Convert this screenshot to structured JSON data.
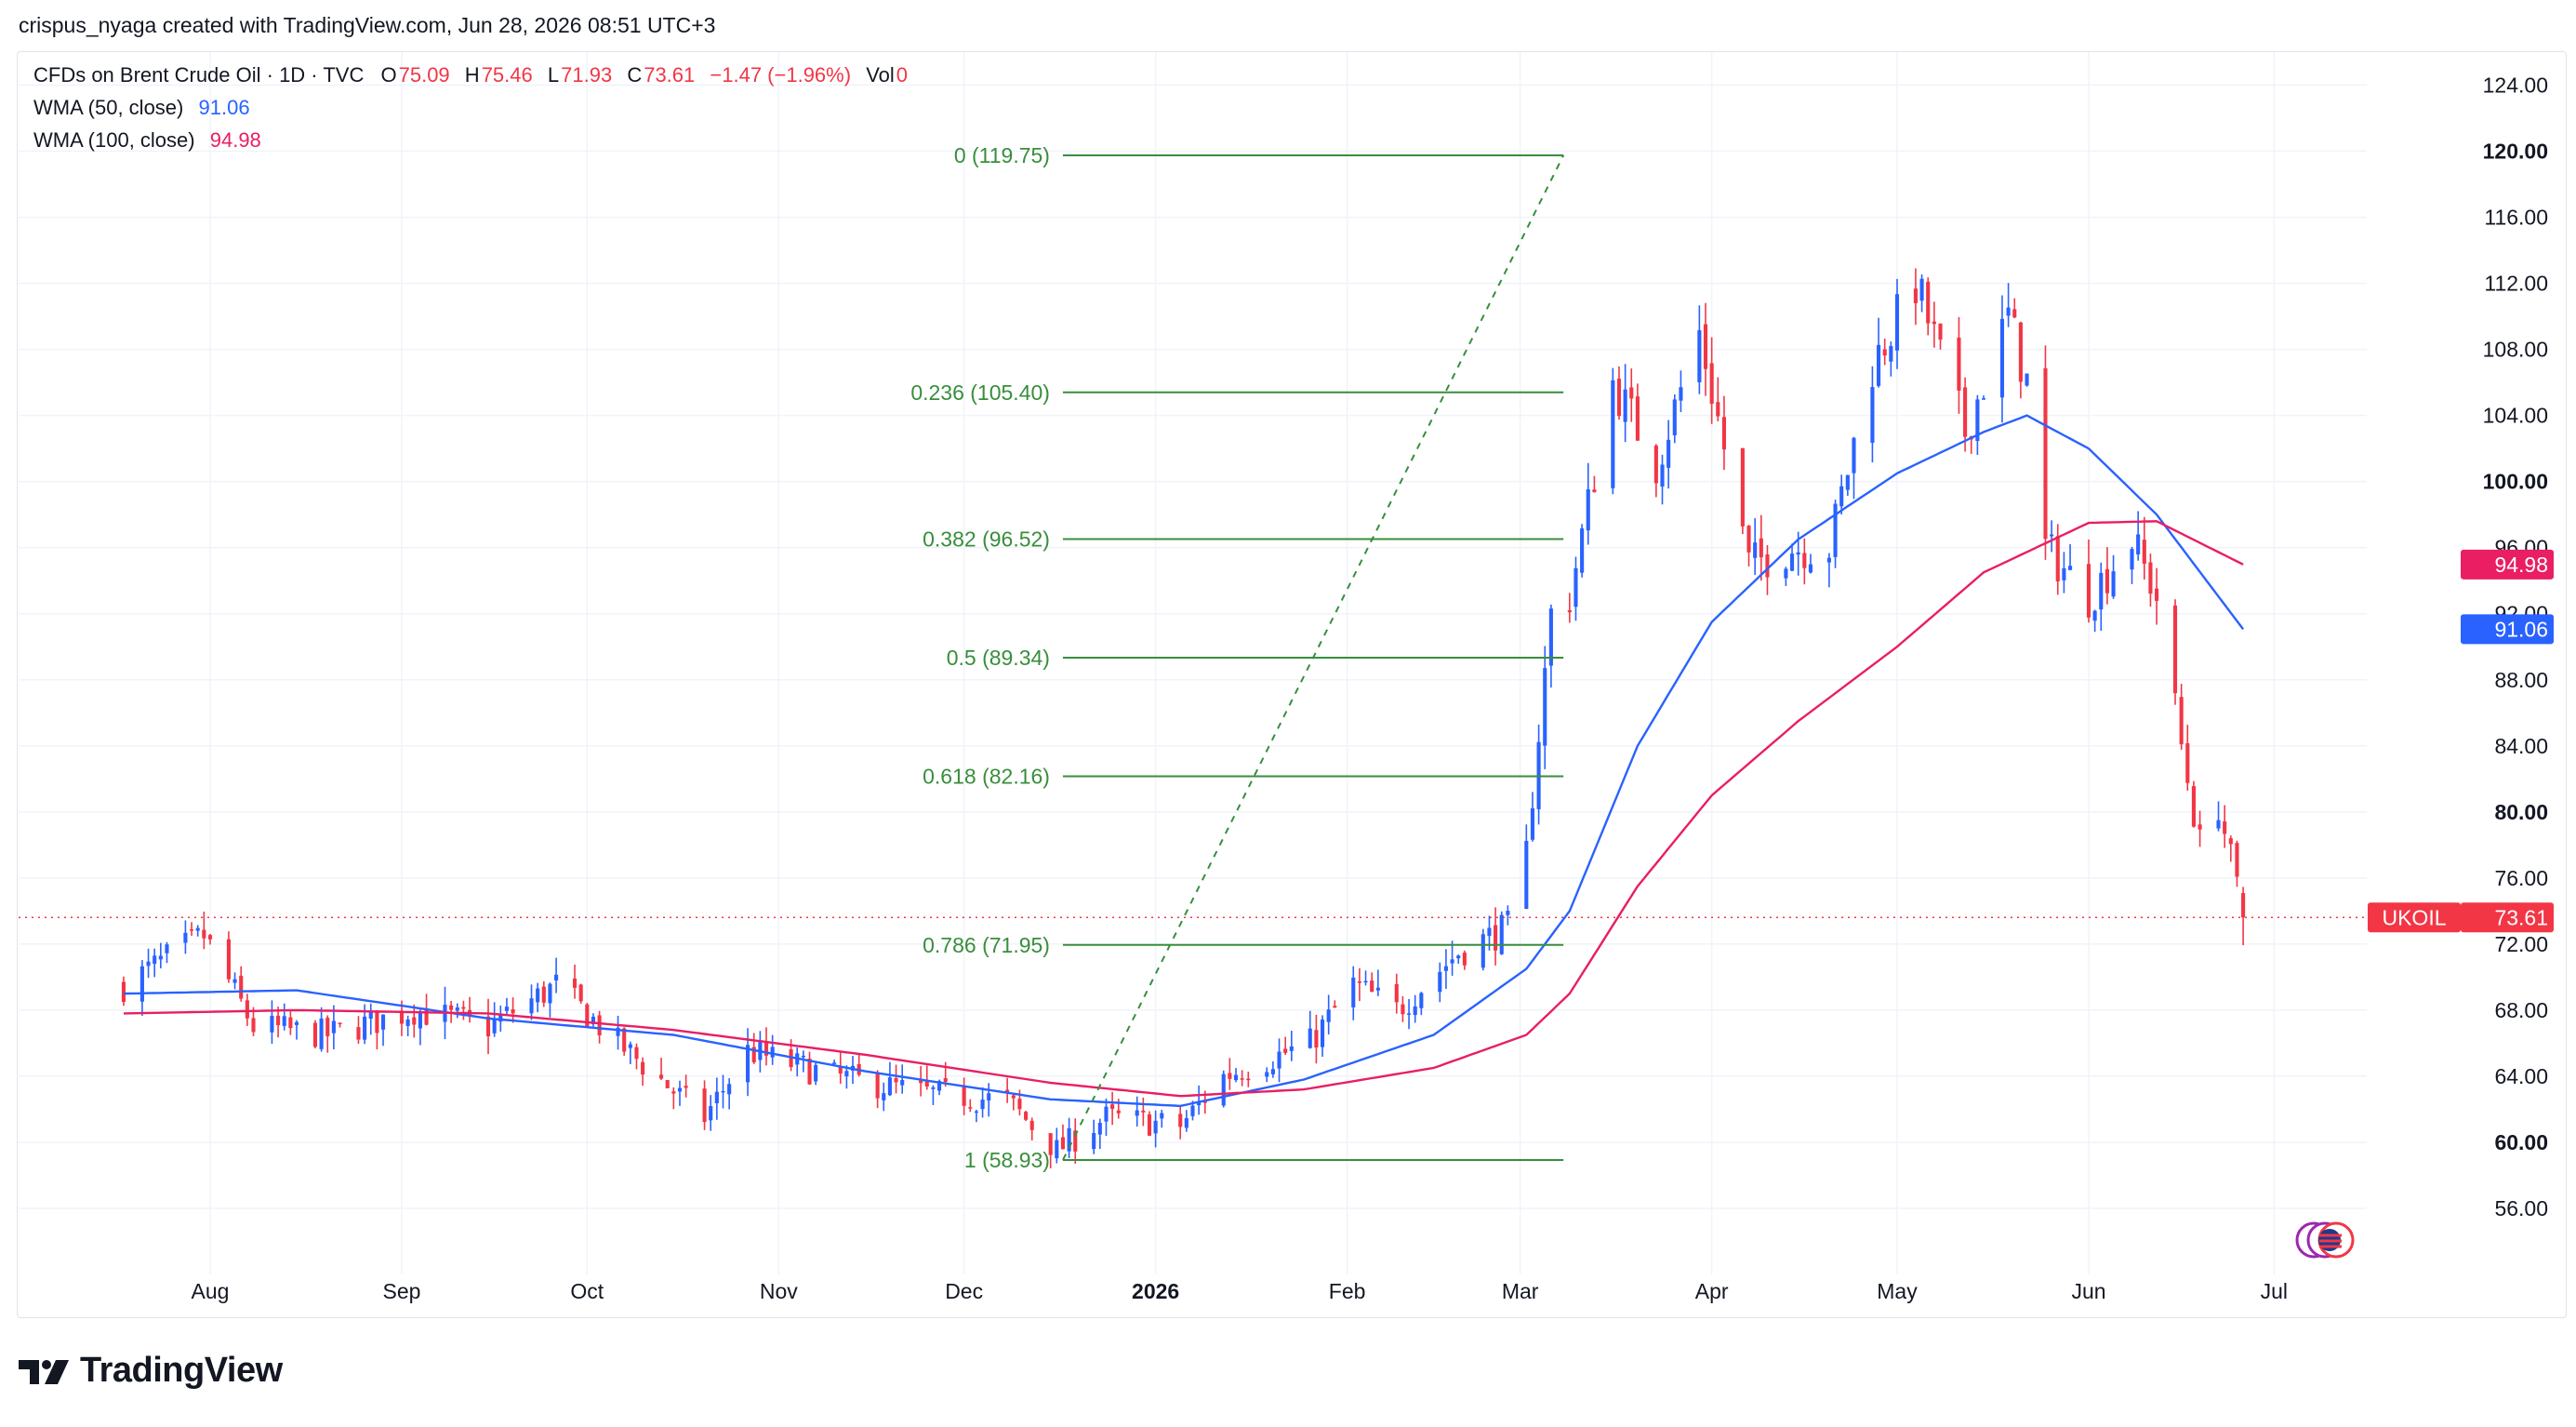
{
  "header": {
    "credit": "crispus_nyaga created with TradingView.com, Jun 28, 2026 08:51 UTC+3"
  },
  "legend": {
    "symbol": "CFDs on Brent Crude Oil · 1D · TVC",
    "o_label": "O",
    "o_value": "75.09",
    "h_label": "H",
    "h_value": "75.46",
    "l_label": "L",
    "l_value": "71.93",
    "c_label": "C",
    "c_value": "73.61",
    "change": "−1.47 (−1.96%)",
    "vol_label": "Vol",
    "vol_value": "0",
    "wma50_label": "WMA (50, close)",
    "wma50_value": "91.06",
    "wma100_label": "WMA (100, close)",
    "wma100_value": "94.98"
  },
  "colors": {
    "up": "#2962ff",
    "down": "#f23645",
    "wma50": "#2962ff",
    "wma100": "#e91e63",
    "fib": "#388e3c",
    "grid": "#f0f3fa",
    "text": "#131722",
    "price_tag": "#f23645"
  },
  "logo": {
    "text": "TradingView"
  },
  "chart_data": {
    "type": "candlestick",
    "symbol": "UKOIL",
    "last_price": 73.61,
    "ylim": [
      52,
      126
    ],
    "y_ticks": [
      "124.00",
      "120.00",
      "116.00",
      "112.00",
      "108.00",
      "104.00",
      "100.00",
      "96.00",
      "92.00",
      "88.00",
      "84.00",
      "80.00",
      "76.00",
      "72.00",
      "68.00",
      "64.00",
      "60.00",
      "56.00"
    ],
    "y_ticks_bold": [
      "120.00",
      "100.00",
      "80.00",
      "60.00"
    ],
    "x_labels": [
      "Aug",
      "Sep",
      "Oct",
      "Nov",
      "Dec",
      "2026",
      "Feb",
      "Mar",
      "Apr",
      "May",
      "Jun",
      "Jul"
    ],
    "x_labels_bold": [
      "2026"
    ],
    "price_tags": [
      {
        "label": "",
        "value": "94.98",
        "price": 94.98,
        "color": "#e91e63"
      },
      {
        "label": "",
        "value": "91.06",
        "price": 91.06,
        "color": "#2962ff"
      },
      {
        "label": "UKOIL",
        "value": "73.61",
        "price": 73.61,
        "color": "#f23645"
      }
    ],
    "fibonacci": [
      {
        "label": "0 (119.75)",
        "price": 119.75
      },
      {
        "label": "0.236 (105.40)",
        "price": 105.4
      },
      {
        "label": "0.382 (96.52)",
        "price": 96.52
      },
      {
        "label": "0.5 (89.34)",
        "price": 89.34
      },
      {
        "label": "0.618 (82.16)",
        "price": 82.16
      },
      {
        "label": "0.786 (71.95)",
        "price": 71.95
      },
      {
        "label": "1 (58.93)",
        "price": 58.93
      }
    ],
    "fib_anchor": {
      "low_label": "1 (58.93)",
      "high_label": "0 (119.75)",
      "low": 58.93,
      "high": 119.75
    },
    "series": [
      {
        "name": "CFDs on Brent Crude Oil",
        "key_points": [
          [
            "2025-07-18",
            69.5
          ],
          [
            "2025-07-31",
            72.5
          ],
          [
            "2025-08-08",
            67.0
          ],
          [
            "2025-08-20",
            66.5
          ],
          [
            "2025-09-03",
            68.0
          ],
          [
            "2025-09-15",
            67.0
          ],
          [
            "2025-09-26",
            69.5
          ],
          [
            "2025-10-06",
            66.0
          ],
          [
            "2025-10-20",
            61.5
          ],
          [
            "2025-10-27",
            65.5
          ],
          [
            "2025-11-10",
            64.0
          ],
          [
            "2025-11-24",
            63.0
          ],
          [
            "2025-12-08",
            62.5
          ],
          [
            "2025-12-16",
            59.5
          ],
          [
            "2025-12-24",
            61.5
          ],
          [
            "2026-01-05",
            61.0
          ],
          [
            "2026-01-12",
            64.0
          ],
          [
            "2026-01-26",
            66.0
          ],
          [
            "2026-02-02",
            69.5
          ],
          [
            "2026-02-09",
            68.0
          ],
          [
            "2026-02-19",
            71.5
          ],
          [
            "2026-02-27",
            73.0
          ],
          [
            "2026-03-02",
            77.5
          ],
          [
            "2026-03-06",
            92.0
          ],
          [
            "2026-03-09",
            93.0
          ],
          [
            "2026-03-16",
            106.0
          ],
          [
            "2026-03-23",
            101.0
          ],
          [
            "2026-03-30",
            109.0
          ],
          [
            "2026-04-07",
            95.0
          ],
          [
            "2026-04-14",
            96.0
          ],
          [
            "2026-04-20",
            96.0
          ],
          [
            "2026-04-27",
            107.0
          ],
          [
            "2026-05-04",
            112.0
          ],
          [
            "2026-05-12",
            103.0
          ],
          [
            "2026-05-19",
            110.0
          ],
          [
            "2026-05-22",
            106.0
          ],
          [
            "2026-05-25",
            96.0
          ],
          [
            "2026-06-01",
            93.0
          ],
          [
            "2026-06-08",
            96.5
          ],
          [
            "2026-06-12",
            93.0
          ],
          [
            "2026-06-16",
            84.0
          ],
          [
            "2026-06-19",
            78.0
          ],
          [
            "2026-06-22",
            80.5
          ],
          [
            "2026-06-26",
            73.61
          ]
        ]
      },
      {
        "name": "WMA (50, close)",
        "key_points": [
          [
            "2025-07-18",
            69.0
          ],
          [
            "2025-08-15",
            69.2
          ],
          [
            "2025-09-15",
            67.5
          ],
          [
            "2025-10-15",
            66.5
          ],
          [
            "2025-11-15",
            64.3
          ],
          [
            "2025-12-15",
            62.6
          ],
          [
            "2026-01-05",
            62.2
          ],
          [
            "2026-01-25",
            63.8
          ],
          [
            "2026-02-15",
            66.5
          ],
          [
            "2026-03-02",
            70.5
          ],
          [
            "2026-03-09",
            74.0
          ],
          [
            "2026-03-20",
            84.0
          ],
          [
            "2026-04-01",
            91.5
          ],
          [
            "2026-04-15",
            96.5
          ],
          [
            "2026-05-01",
            100.5
          ],
          [
            "2026-05-15",
            103.0
          ],
          [
            "2026-05-22",
            104.0
          ],
          [
            "2026-06-01",
            102.0
          ],
          [
            "2026-06-12",
            98.0
          ],
          [
            "2026-06-26",
            91.06
          ]
        ]
      },
      {
        "name": "WMA (100, close)",
        "key_points": [
          [
            "2025-07-18",
            67.8
          ],
          [
            "2025-08-15",
            68.0
          ],
          [
            "2025-09-15",
            67.8
          ],
          [
            "2025-10-15",
            66.8
          ],
          [
            "2025-11-15",
            65.3
          ],
          [
            "2025-12-15",
            63.6
          ],
          [
            "2026-01-05",
            62.8
          ],
          [
            "2026-01-25",
            63.2
          ],
          [
            "2026-02-15",
            64.5
          ],
          [
            "2026-03-02",
            66.5
          ],
          [
            "2026-03-09",
            69.0
          ],
          [
            "2026-03-20",
            75.5
          ],
          [
            "2026-04-01",
            81.0
          ],
          [
            "2026-04-15",
            85.5
          ],
          [
            "2026-05-01",
            90.0
          ],
          [
            "2026-05-15",
            94.5
          ],
          [
            "2026-06-01",
            97.5
          ],
          [
            "2026-06-12",
            97.6
          ],
          [
            "2026-06-26",
            94.98
          ]
        ]
      }
    ]
  }
}
